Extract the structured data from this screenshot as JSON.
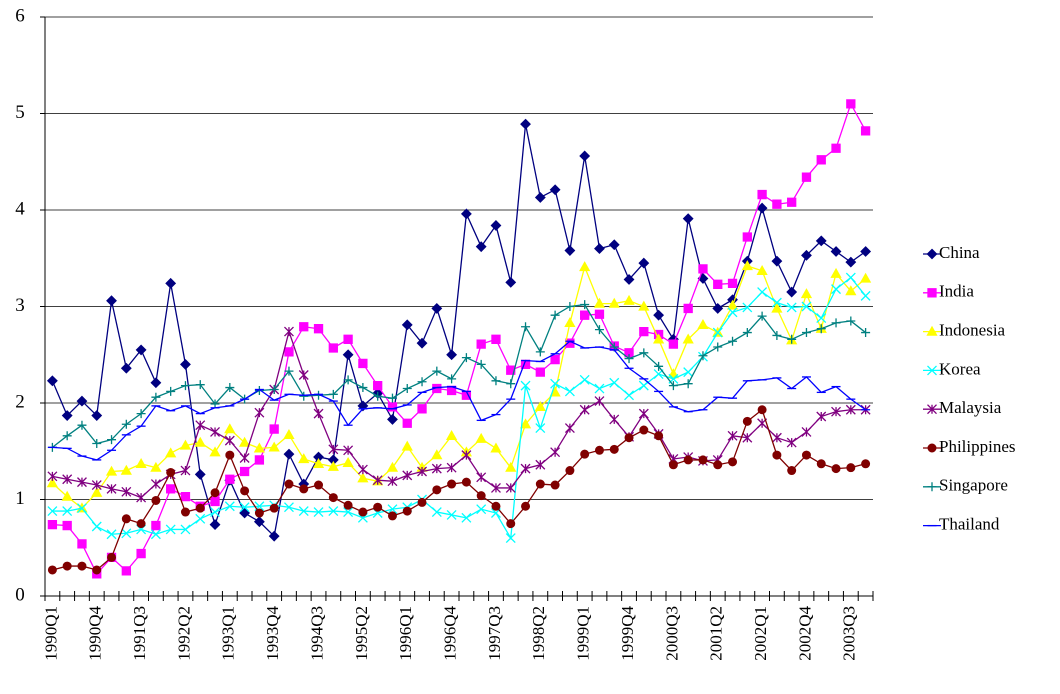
{
  "chart_data": {
    "type": "line",
    "categories": [
      "1990Q1",
      null,
      null,
      "1990Q4",
      null,
      null,
      "1991Q3",
      null,
      null,
      "1992Q2",
      null,
      null,
      "1993Q1",
      null,
      null,
      "1993Q4",
      null,
      null,
      "1994Q3",
      null,
      null,
      "1995Q2",
      null,
      null,
      "1996Q1",
      null,
      null,
      "1996Q4",
      null,
      null,
      "1997Q3",
      null,
      null,
      "1998Q2",
      null,
      null,
      "1999Q1",
      null,
      null,
      "1999Q4",
      null,
      null,
      "2000Q3",
      null,
      null,
      "2001Q2",
      null,
      null,
      "2002Q1",
      null,
      null,
      "2002Q4",
      null,
      null,
      "2003Q3",
      null
    ],
    "ylim": [
      0,
      6
    ],
    "yticks": [
      0,
      1,
      2,
      3,
      4,
      5,
      6
    ],
    "grid": true,
    "legend": "right",
    "series": [
      {
        "name": "China",
        "color": "#000080",
        "marker": "diamond",
        "values": [
          2.23,
          1.87,
          2.02,
          1.87,
          3.06,
          2.36,
          2.55,
          2.21,
          3.24,
          2.4,
          1.26,
          0.74,
          1.2,
          0.86,
          0.77,
          0.62,
          1.47,
          1.16,
          1.44,
          1.41,
          2.5,
          1.97,
          2.1,
          1.83,
          2.81,
          2.62,
          2.98,
          2.5,
          3.96,
          3.62,
          3.84,
          3.25,
          4.89,
          4.13,
          4.21,
          3.58,
          4.56,
          3.6,
          3.64,
          3.28,
          3.45,
          2.91,
          2.66,
          3.91,
          3.29,
          2.98,
          3.07,
          3.47,
          4.02,
          3.47,
          3.15,
          3.53,
          3.68,
          3.57,
          3.46,
          3.57
        ]
      },
      {
        "name": "India",
        "color": "#ff00ff",
        "marker": "square",
        "values": [
          0.74,
          0.73,
          0.54,
          0.23,
          0.4,
          0.26,
          0.44,
          0.73,
          1.11,
          1.03,
          0.93,
          0.98,
          1.21,
          1.29,
          1.41,
          1.73,
          2.53,
          2.79,
          2.77,
          2.57,
          2.66,
          2.41,
          2.18,
          1.96,
          1.79,
          1.94,
          2.15,
          2.13,
          2.08,
          2.61,
          2.66,
          2.34,
          2.4,
          2.32,
          2.45,
          2.62,
          2.91,
          2.92,
          2.59,
          2.52,
          2.74,
          2.71,
          2.61,
          2.98,
          3.39,
          3.23,
          3.24,
          3.72,
          4.16,
          4.06,
          4.08,
          4.34,
          4.52,
          4.64,
          5.1,
          4.82
        ]
      },
      {
        "name": "Indonesia",
        "color": "#ffff00",
        "marker": "triangle",
        "values": [
          1.17,
          1.03,
          0.91,
          1.07,
          1.29,
          1.3,
          1.37,
          1.33,
          1.48,
          1.56,
          1.59,
          1.49,
          1.73,
          1.59,
          1.53,
          1.54,
          1.67,
          1.42,
          1.37,
          1.34,
          1.38,
          1.22,
          1.19,
          1.33,
          1.55,
          1.33,
          1.46,
          1.66,
          1.49,
          1.63,
          1.53,
          1.33,
          1.78,
          1.96,
          2.11,
          2.83,
          3.41,
          3.03,
          3.03,
          3.06,
          3.0,
          2.66,
          2.3,
          2.66,
          2.81,
          2.73,
          3.01,
          3.42,
          3.37,
          2.98,
          2.65,
          3.13,
          2.77,
          3.34,
          3.16,
          3.29
        ]
      },
      {
        "name": "Korea",
        "color": "#00ffff",
        "marker": "x",
        "values": [
          0.88,
          0.88,
          0.91,
          0.72,
          0.64,
          0.65,
          0.69,
          0.64,
          0.69,
          0.69,
          0.8,
          0.87,
          0.93,
          0.92,
          0.93,
          0.94,
          0.92,
          0.88,
          0.87,
          0.88,
          0.87,
          0.81,
          0.86,
          0.9,
          0.92,
          1.0,
          0.87,
          0.84,
          0.81,
          0.9,
          0.86,
          0.6,
          2.18,
          1.74,
          2.2,
          2.12,
          2.24,
          2.15,
          2.21,
          2.08,
          2.18,
          2.3,
          2.25,
          2.32,
          2.48,
          2.73,
          2.94,
          2.99,
          3.15,
          3.04,
          2.99,
          3.0,
          2.88,
          3.18,
          3.3,
          3.11
        ]
      },
      {
        "name": "Malaysia",
        "color": "#800080",
        "marker": "star",
        "values": [
          1.24,
          1.21,
          1.18,
          1.15,
          1.11,
          1.08,
          1.02,
          1.16,
          1.26,
          1.3,
          1.77,
          1.7,
          1.61,
          1.43,
          1.9,
          2.14,
          2.74,
          2.29,
          1.89,
          1.52,
          1.51,
          1.31,
          1.2,
          1.19,
          1.25,
          1.29,
          1.32,
          1.33,
          1.46,
          1.23,
          1.12,
          1.12,
          1.32,
          1.36,
          1.49,
          1.74,
          1.93,
          2.02,
          1.83,
          1.65,
          1.89,
          1.68,
          1.42,
          1.44,
          1.4,
          1.41,
          1.66,
          1.64,
          1.79,
          1.64,
          1.59,
          1.7,
          1.86,
          1.91,
          1.93,
          1.93
        ]
      },
      {
        "name": "Philippines",
        "color": "#800000",
        "marker": "circle",
        "values": [
          0.27,
          0.31,
          0.31,
          0.27,
          0.4,
          0.8,
          0.75,
          0.99,
          1.28,
          0.87,
          0.91,
          1.07,
          1.46,
          1.09,
          0.86,
          0.91,
          1.16,
          1.11,
          1.15,
          1.02,
          0.94,
          0.87,
          0.92,
          0.83,
          0.88,
          0.97,
          1.1,
          1.16,
          1.18,
          1.04,
          0.93,
          0.75,
          0.93,
          1.16,
          1.15,
          1.3,
          1.47,
          1.51,
          1.52,
          1.64,
          1.72,
          1.66,
          1.36,
          1.41,
          1.41,
          1.36,
          1.39,
          1.81,
          1.93,
          1.46,
          1.3,
          1.46,
          1.37,
          1.32,
          1.33,
          1.37
        ]
      },
      {
        "name": "Singapore",
        "color": "#008080",
        "marker": "plus",
        "values": [
          1.54,
          1.66,
          1.77,
          1.58,
          1.62,
          1.78,
          1.89,
          2.06,
          2.12,
          2.18,
          2.19,
          1.99,
          2.16,
          2.04,
          2.13,
          2.14,
          2.33,
          2.07,
          2.08,
          2.09,
          2.24,
          2.16,
          2.07,
          2.05,
          2.15,
          2.22,
          2.33,
          2.25,
          2.47,
          2.4,
          2.23,
          2.2,
          2.79,
          2.53,
          2.91,
          3.0,
          3.02,
          2.76,
          2.58,
          2.46,
          2.52,
          2.38,
          2.18,
          2.2,
          2.49,
          2.58,
          2.64,
          2.73,
          2.9,
          2.7,
          2.66,
          2.73,
          2.77,
          2.83,
          2.85,
          2.73
        ]
      },
      {
        "name": "Thailand",
        "color": "#0000ff",
        "marker": "dash",
        "values": [
          1.54,
          1.53,
          1.45,
          1.41,
          1.51,
          1.67,
          1.76,
          1.97,
          1.92,
          1.97,
          1.89,
          1.95,
          1.97,
          2.04,
          2.14,
          2.03,
          2.09,
          2.08,
          2.09,
          2.02,
          1.77,
          1.94,
          1.95,
          1.94,
          1.98,
          2.11,
          2.16,
          2.17,
          2.12,
          1.82,
          1.88,
          2.04,
          2.44,
          2.43,
          2.51,
          2.64,
          2.57,
          2.58,
          2.55,
          2.36,
          2.25,
          2.12,
          1.96,
          1.91,
          1.93,
          2.06,
          2.05,
          2.23,
          2.24,
          2.26,
          2.15,
          2.27,
          2.11,
          2.17,
          2.04,
          1.93
        ]
      }
    ]
  }
}
